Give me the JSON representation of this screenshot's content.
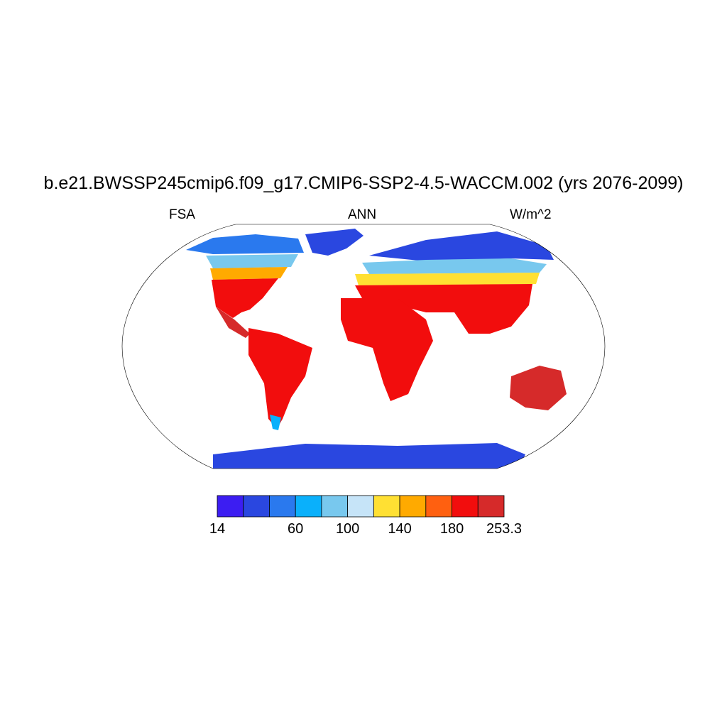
{
  "title": "b.e21.BWSSP245cmip6.f09_g17.CMIP6-SSP2-4.5-WACCM.002 (yrs 2076-2099)",
  "subtitle_left": "FSA",
  "subtitle_center": "ANN",
  "subtitle_right": "W/m^2",
  "colorbar": {
    "colors": [
      "#3c1df2",
      "#2a47e0",
      "#2a79ee",
      "#0ab0fb",
      "#78c8ee",
      "#c6e4f8",
      "#ffe033",
      "#ffaa00",
      "#ff6010",
      "#f20d0d",
      "#d62a2a"
    ],
    "tick_labels": [
      "14",
      "60",
      "100",
      "140",
      "180",
      "253.3"
    ]
  },
  "colors": {
    "ocean": "#ffffff",
    "coastline": "#000000"
  }
}
